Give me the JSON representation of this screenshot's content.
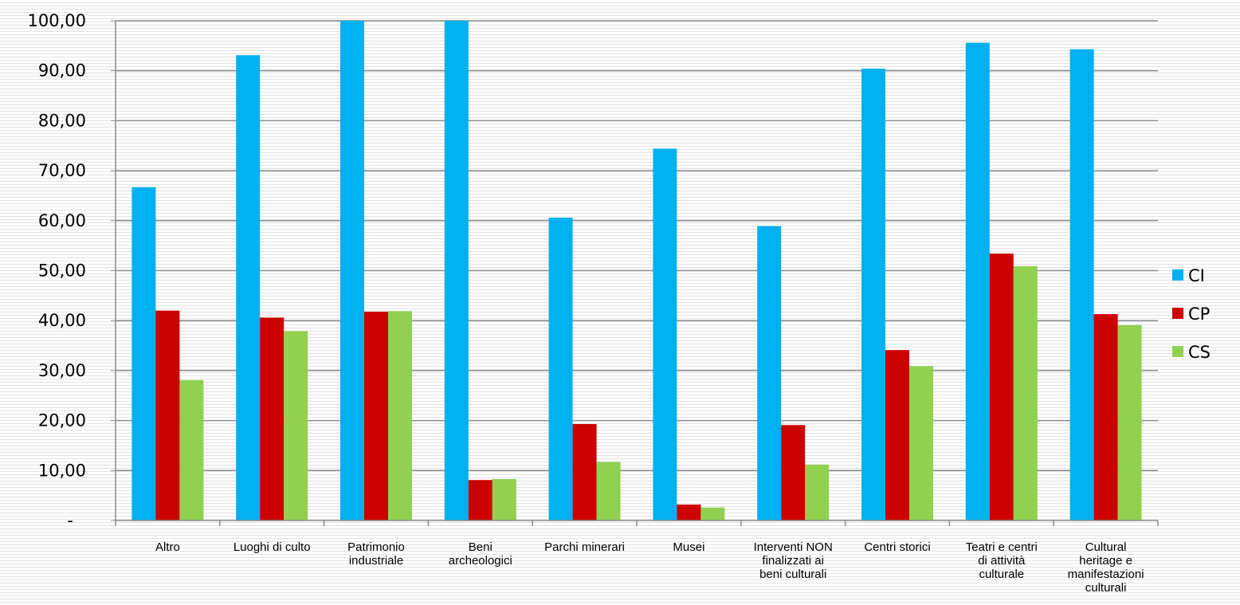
{
  "chart_data": {
    "type": "bar",
    "title": "",
    "xlabel": "",
    "ylabel": "",
    "ylim": [
      0,
      100
    ],
    "yticks": [
      0,
      10,
      20,
      30,
      40,
      50,
      60,
      70,
      80,
      90,
      100
    ],
    "ytick_labels": [
      "-",
      "10,00",
      "20,00",
      "30,00",
      "40,00",
      "50,00",
      "60,00",
      "70,00",
      "80,00",
      "90,00",
      "100,00"
    ],
    "grid": true,
    "legend_position": "right",
    "categories": [
      [
        "Altro"
      ],
      [
        "Luoghi di culto"
      ],
      [
        "Patrimonio",
        "industriale"
      ],
      [
        "Beni",
        "archeologici"
      ],
      [
        "Parchi minerari"
      ],
      [
        "Musei"
      ],
      [
        "Interventi NON",
        "finalizzati ai",
        "beni culturali"
      ],
      [
        "Centri storici"
      ],
      [
        "Teatri e centri",
        "di attività",
        "culturale"
      ],
      [
        "Cultural",
        "heritage e",
        "manifestazioni",
        "culturali"
      ]
    ],
    "series": [
      {
        "name": "CI",
        "color": "#00b0f0",
        "values": [
          66.7,
          93.1,
          100,
          100,
          60.6,
          74.4,
          58.9,
          90.4,
          95.6,
          94.3
        ]
      },
      {
        "name": "CP",
        "color": "#cc0000",
        "values": [
          42.0,
          40.6,
          41.8,
          8.1,
          19.3,
          3.2,
          19.1,
          34.1,
          53.4,
          41.3
        ]
      },
      {
        "name": "CS",
        "color": "#92d050",
        "values": [
          28.1,
          37.9,
          41.9,
          8.3,
          11.7,
          2.6,
          11.2,
          30.9,
          50.9,
          39.1
        ]
      }
    ]
  }
}
